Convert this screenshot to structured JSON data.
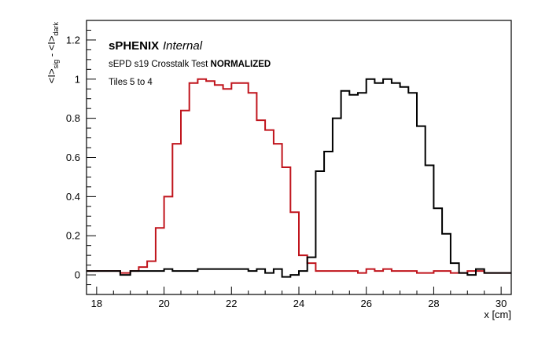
{
  "chart_data": {
    "type": "line",
    "style": "step-histogram",
    "header": {
      "experiment": "sPHENIX",
      "status": "Internal",
      "subtitle_plain": "sEPD s19 Crosstalk Test ",
      "subtitle_bold": "NORMALIZED",
      "tiles": "Tiles 5 to 4"
    },
    "xlabel": "x [cm]",
    "ylabel": "<I>sig - <I>dark",
    "ylabel_parts": {
      "open1": "<I>",
      "sub1": "sig",
      "mid": " - <I>",
      "sub2": "dark"
    },
    "xlim": [
      17.7,
      30.3
    ],
    "ylim": [
      -0.1,
      1.3
    ],
    "xticks": [
      18,
      20,
      22,
      24,
      26,
      28,
      30
    ],
    "xtick_labels": [
      "18",
      "20",
      "22",
      "24",
      "26",
      "28",
      "30"
    ],
    "yticks": [
      0,
      0.2,
      0.4,
      0.6,
      0.8,
      1,
      1.2
    ],
    "ytick_labels": [
      "0",
      "0.2",
      "0.4",
      "0.6",
      "0.8",
      "1",
      "1.2"
    ],
    "grid": false,
    "legend": "none",
    "series": [
      {
        "color": "#c0141c",
        "edges": [
          17.7,
          18.7,
          19.0,
          19.25,
          19.5,
          19.75,
          20.0,
          20.25,
          20.5,
          20.75,
          21.0,
          21.25,
          21.5,
          21.75,
          22.0,
          22.25,
          22.5,
          22.75,
          23.0,
          23.25,
          23.5,
          23.75,
          24.0,
          24.25,
          24.5,
          25.0,
          25.5,
          25.75,
          26.0,
          26.25,
          26.5,
          26.75,
          27.0,
          27.5,
          28.0,
          28.5,
          29.0,
          29.5,
          30.3
        ],
        "values": [
          0.02,
          0.01,
          0.02,
          0.04,
          0.07,
          0.24,
          0.4,
          0.67,
          0.84,
          0.98,
          1.0,
          0.99,
          0.97,
          0.95,
          0.98,
          0.98,
          0.93,
          0.79,
          0.74,
          0.67,
          0.55,
          0.32,
          0.1,
          0.06,
          0.02,
          0.02,
          0.02,
          0.01,
          0.03,
          0.02,
          0.03,
          0.02,
          0.02,
          0.01,
          0.02,
          0.01,
          0.02,
          0.01
        ]
      },
      {
        "color": "#000000",
        "edges": [
          17.7,
          18.7,
          19.0,
          19.5,
          20.0,
          20.25,
          20.5,
          21.0,
          22.5,
          22.75,
          23.0,
          23.25,
          23.5,
          23.75,
          24.0,
          24.25,
          24.5,
          24.75,
          25.0,
          25.25,
          25.5,
          25.75,
          26.0,
          26.25,
          26.5,
          26.75,
          27.0,
          27.25,
          27.5,
          27.75,
          28.0,
          28.25,
          28.5,
          28.75,
          29.0,
          29.25,
          29.5,
          30.3
        ],
        "values": [
          0.02,
          0.0,
          0.02,
          0.02,
          0.03,
          0.02,
          0.02,
          0.03,
          0.02,
          0.03,
          0.01,
          0.03,
          -0.01,
          0.0,
          0.02,
          0.09,
          0.53,
          0.63,
          0.8,
          0.94,
          0.92,
          0.93,
          1.0,
          0.98,
          1.0,
          0.98,
          0.96,
          0.93,
          0.76,
          0.56,
          0.34,
          0.21,
          0.06,
          0.01,
          0.0,
          0.03,
          0.01
        ]
      }
    ]
  }
}
